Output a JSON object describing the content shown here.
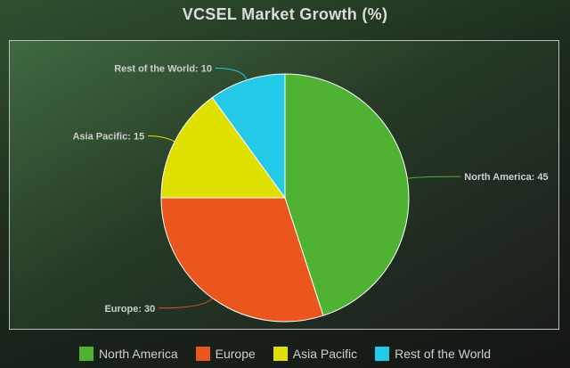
{
  "chart_data": {
    "type": "pie",
    "title": "VCSEL Market Growth (%)",
    "slices": [
      {
        "label": "North America",
        "value": 45,
        "color": "#4fb233"
      },
      {
        "label": "Europe",
        "value": 30,
        "color": "#eb561e"
      },
      {
        "label": "Asia Pacific",
        "value": 15,
        "color": "#e0e000"
      },
      {
        "label": "Rest of the World",
        "value": 10,
        "color": "#23c9e6"
      }
    ],
    "legend_position": "bottom",
    "data_label_separator": ": "
  }
}
